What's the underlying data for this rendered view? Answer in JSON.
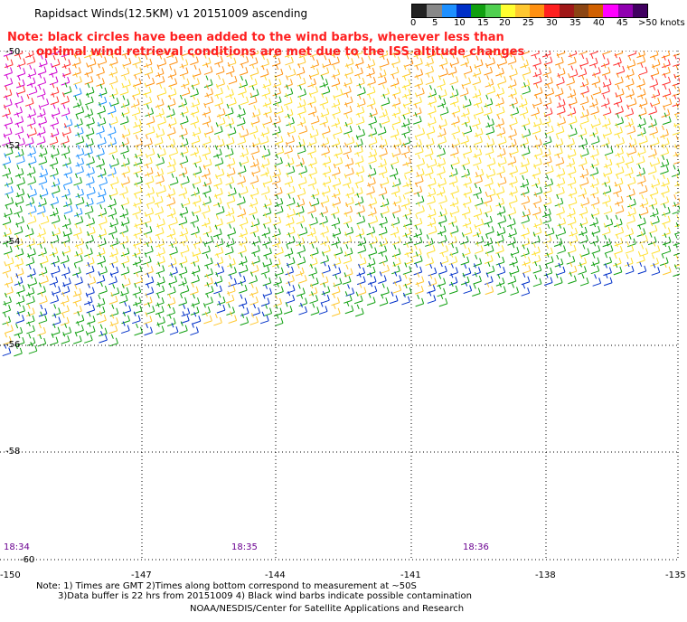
{
  "header": {
    "title": "Rapidsact Winds(12.5KM) v1 20151009 ascending",
    "note_line1": "Note: black circles have been added to the wind barbs, wherever less than",
    "note_line2": "optimal wind retrieval conditions are met due to the ISS altitude changes"
  },
  "colorbar": {
    "labels": [
      "0",
      "5",
      "10",
      "15",
      "20",
      "25",
      "30",
      "35",
      "40",
      "45",
      ">50 knots"
    ],
    "colors": [
      "#1a1a1a",
      "#7f7f7f",
      "#1f8fff",
      "#1a3cc8",
      "#18a818",
      "#50d850",
      "#ffff30",
      "#ffd030",
      "#ff9a20",
      "#ff2020",
      "#a01010",
      "#8b4513",
      "#c86400",
      "#ff00ff",
      "#a000c0",
      "#500070"
    ]
  },
  "axes": {
    "lat_labels": [
      "-50",
      "-52",
      "-54",
      "-56",
      "-58",
      "-60"
    ],
    "lon_labels": [
      "-150",
      "-147",
      "-144",
      "-141",
      "-138",
      "-135"
    ]
  },
  "times": [
    "18:34",
    "18:35",
    "18:36"
  ],
  "footer": {
    "line1": "Note: 1) Times are GMT 2)Times along bottom correspond to measurement at ~50S",
    "line2": "3)Data buffer is 22 hrs from 20151009 4) Black wind barbs indicate possible contamination",
    "line3": "NOAA/NESDIS/Center for Satellite Applications and Research"
  }
}
